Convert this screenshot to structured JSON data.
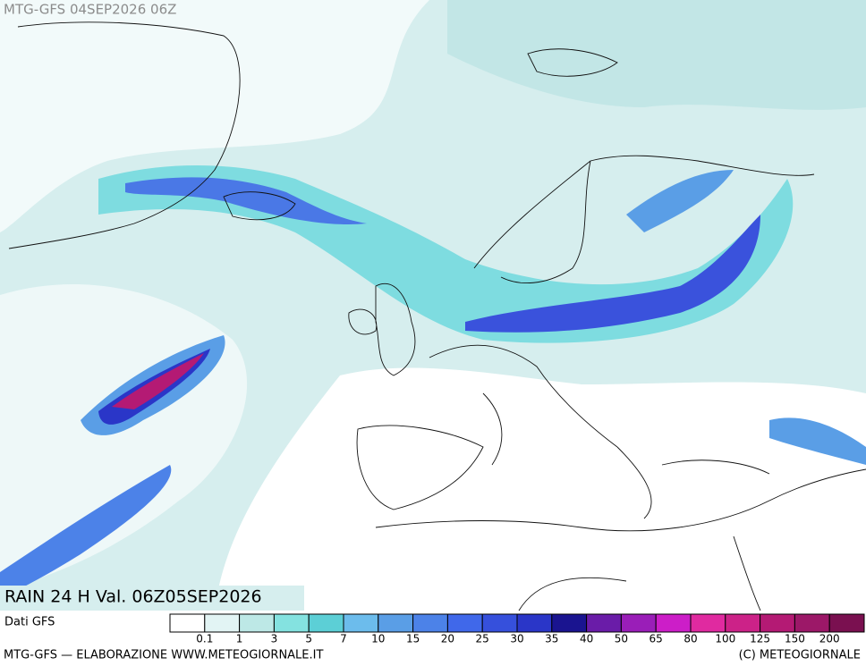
{
  "header": {
    "title": "MTG-GFS 04SEP2026 06Z"
  },
  "map": {
    "caption": "RAIN 24 H Val. 06Z05SEP2026"
  },
  "legend": {
    "source": "Dati GFS",
    "colors": [
      "#ffffff",
      "#e2f4f4",
      "#bde8e6",
      "#84e2e0",
      "#5ccfd6",
      "#6cbcec",
      "#5a9ee6",
      "#4c82e8",
      "#4068ea",
      "#3650dc",
      "#2a36c8",
      "#1a1490",
      "#6a1ca8",
      "#9a1eb8",
      "#cc1ec8",
      "#e02aa0",
      "#cc2288",
      "#b41a74",
      "#9c1868",
      "#7a1050"
    ],
    "ticks": [
      0.1,
      1,
      3,
      5,
      7,
      10,
      15,
      20,
      25,
      30,
      35,
      40,
      50,
      65,
      80,
      100,
      125,
      150,
      200
    ]
  },
  "footer": {
    "left": "MTG-GFS — ELABORAZIONE WWW.METEOGIORNALE.IT",
    "right": "(C) METEOGIORNALE"
  }
}
